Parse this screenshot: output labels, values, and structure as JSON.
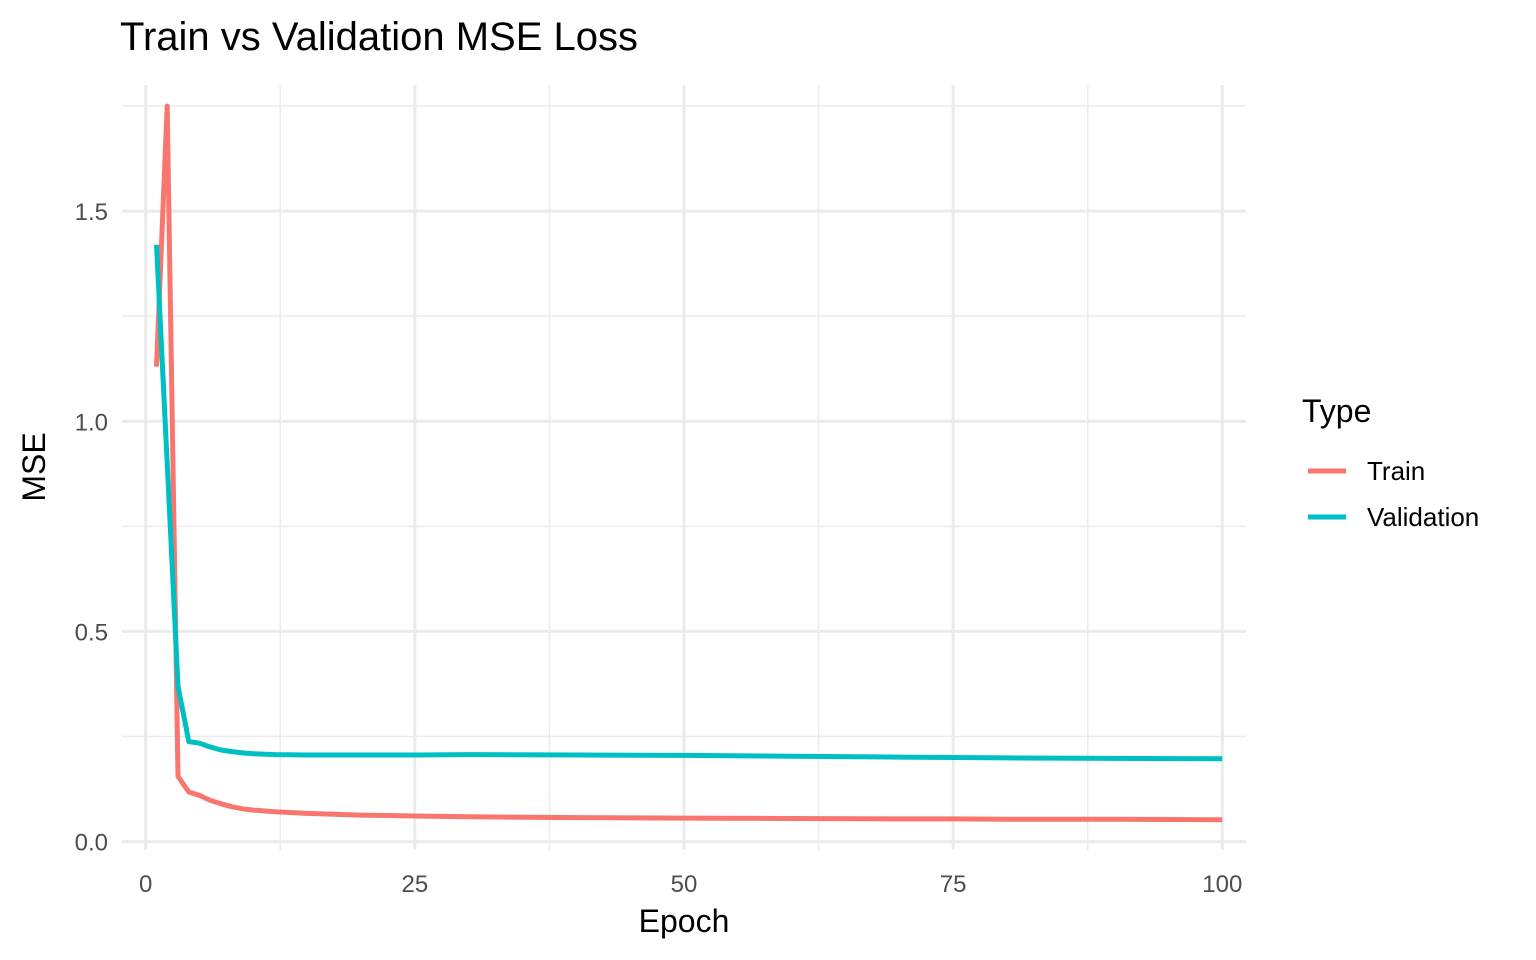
{
  "chart_data": {
    "type": "line",
    "title": "Train vs Validation MSE Loss",
    "xlabel": "Epoch",
    "ylabel": "MSE",
    "xlim": [
      -2.2,
      102.2
    ],
    "ylim": [
      -0.02,
      1.8
    ],
    "x_ticks": [
      0,
      25,
      50,
      75,
      100
    ],
    "x_tick_labels": [
      "0",
      "25",
      "50",
      "75",
      "100"
    ],
    "y_ticks": [
      0.0,
      0.5,
      1.0,
      1.5
    ],
    "y_tick_labels": [
      "0.0",
      "0.5",
      "1.0",
      "1.5"
    ],
    "grid": true,
    "legend": {
      "title": "Type",
      "position": "right"
    },
    "series": [
      {
        "name": "Train",
        "color": "#F8766D",
        "points": [
          [
            1,
            1.13
          ],
          [
            2,
            1.75
          ],
          [
            3,
            0.155
          ],
          [
            4,
            0.118
          ],
          [
            5,
            0.11
          ],
          [
            6,
            0.098
          ],
          [
            7,
            0.09
          ],
          [
            8,
            0.083
          ],
          [
            9,
            0.078
          ],
          [
            10,
            0.075
          ],
          [
            12,
            0.071
          ],
          [
            15,
            0.067
          ],
          [
            20,
            0.063
          ],
          [
            25,
            0.061
          ],
          [
            30,
            0.059
          ],
          [
            40,
            0.057
          ],
          [
            50,
            0.056
          ],
          [
            60,
            0.055
          ],
          [
            70,
            0.054
          ],
          [
            75,
            0.054
          ],
          [
            80,
            0.053
          ],
          [
            90,
            0.053
          ],
          [
            100,
            0.052
          ]
        ]
      },
      {
        "name": "Validation",
        "color": "#00BFC4",
        "points": [
          [
            1,
            1.42
          ],
          [
            2,
            0.9
          ],
          [
            3,
            0.37
          ],
          [
            4,
            0.238
          ],
          [
            5,
            0.234
          ],
          [
            6,
            0.225
          ],
          [
            7,
            0.218
          ],
          [
            8,
            0.214
          ],
          [
            9,
            0.211
          ],
          [
            10,
            0.209
          ],
          [
            12,
            0.207
          ],
          [
            15,
            0.206
          ],
          [
            20,
            0.206
          ],
          [
            25,
            0.206
          ],
          [
            30,
            0.207
          ],
          [
            40,
            0.206
          ],
          [
            50,
            0.205
          ],
          [
            60,
            0.203
          ],
          [
            70,
            0.201
          ],
          [
            75,
            0.2
          ],
          [
            80,
            0.199
          ],
          [
            90,
            0.198
          ],
          [
            100,
            0.197
          ]
        ]
      }
    ]
  }
}
